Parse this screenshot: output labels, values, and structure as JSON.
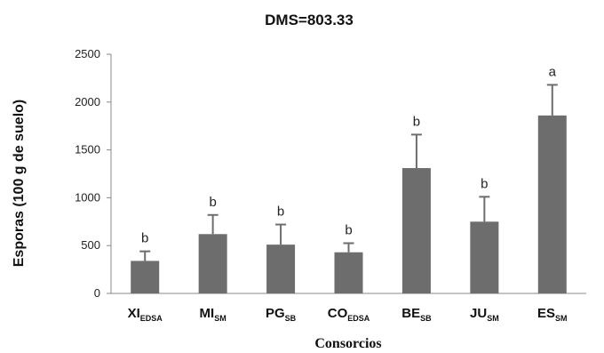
{
  "chart_data": {
    "type": "bar",
    "title": "DMS=803.33",
    "xlabel": "Consorcios",
    "ylabel": "Esporas (100 g de suelo)",
    "ylim": [
      0,
      2500
    ],
    "yticks": [
      "0",
      "500",
      "1000",
      "1500",
      "2000",
      "2500"
    ],
    "grid": false,
    "bar_color": "#6d6d6d",
    "categories": [
      {
        "main": "XI",
        "sub": "EDSA"
      },
      {
        "main": "MI",
        "sub": "SM"
      },
      {
        "main": "PG",
        "sub": "SB"
      },
      {
        "main": "CO",
        "sub": "EDSA"
      },
      {
        "main": "BE",
        "sub": "SB"
      },
      {
        "main": "JU",
        "sub": "SM"
      },
      {
        "main": "ES",
        "sub": "SM"
      }
    ],
    "values": [
      340,
      620,
      510,
      430,
      1310,
      750,
      1860
    ],
    "errors": [
      100,
      200,
      210,
      95,
      350,
      260,
      320
    ],
    "annotations": [
      "b",
      "b",
      "b",
      "b",
      "b",
      "b",
      "a"
    ]
  }
}
